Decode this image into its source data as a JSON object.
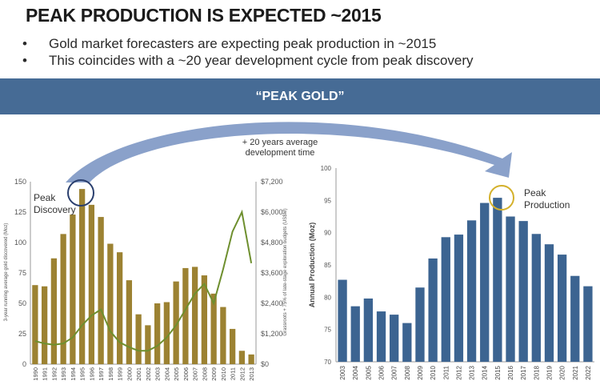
{
  "slide": {
    "title": "PEAK PRODUCTION IS EXPECTED ~2015",
    "bullets": [
      "Gold market forecasters are expecting peak production in ~2015",
      "This coincides with a ~20 year development cycle from peak discovery"
    ],
    "banner": "“PEAK GOLD”",
    "arrow_label_1": "+ 20 years average",
    "arrow_label_2": "development time",
    "colors": {
      "banner": "#466b95",
      "gold_bar": "#9c8232",
      "line": "#6e8f2e",
      "blue_bar": "#3c6491",
      "arrow": "#7d97c4"
    }
  },
  "chart_data": [
    {
      "type": "bar",
      "title": "",
      "annotation": [
        "Peak",
        "Discovery"
      ],
      "categories": [
        "1990",
        "1991",
        "1992",
        "1993",
        "1994",
        "1995",
        "1996",
        "1997",
        "1998",
        "1999",
        "2000",
        "2001",
        "2002",
        "2003",
        "2004",
        "2005",
        "2006",
        "2007",
        "2008",
        "2009",
        "2010",
        "2011",
        "2012",
        "2013"
      ],
      "series": [
        {
          "name": "3-year running average gold discovered (Moz)",
          "axis": "left",
          "type": "bar",
          "values": [
            65,
            64,
            87,
            107,
            123,
            144,
            131,
            121,
            99,
            92,
            69,
            41,
            32,
            50,
            51,
            68,
            79,
            80,
            73,
            58,
            47,
            29,
            11,
            8
          ]
        },
        {
          "name": "Grassroots + 75% of late-stage exploration budgets (US$M)",
          "axis": "right",
          "type": "line",
          "values": [
            912,
            816,
            768,
            816,
            1056,
            1536,
            1920,
            2160,
            1296,
            864,
            672,
            528,
            528,
            720,
            1056,
            1536,
            2160,
            2784,
            3168,
            2400,
            3744,
            5232,
            6000,
            3984
          ]
        }
      ],
      "ylabel": "3-year running average gold discovered (Moz)",
      "ylabel_right": "Grassroots + 75% of late-stage exploration budgets (US$M)",
      "ylim": [
        0,
        150
      ],
      "yticks": [
        "0",
        "25",
        "50",
        "75",
        "100",
        "125",
        "150"
      ],
      "ylim_right": [
        0,
        7200
      ],
      "yticks_right": [
        "$0",
        "$1,200",
        "$2,400",
        "$3,600",
        "$4,800",
        "$6,000",
        "$7,200"
      ]
    },
    {
      "type": "bar",
      "title": "",
      "annotation": [
        "Peak",
        "Production"
      ],
      "categories": [
        "2003",
        "2004",
        "2005",
        "2006",
        "2007",
        "2008",
        "2009",
        "2010",
        "2011",
        "2012",
        "2013",
        "2014",
        "2015",
        "2016",
        "2017",
        "2018",
        "2019",
        "2020",
        "2021",
        "2022"
      ],
      "values": [
        82.7,
        78.6,
        79.8,
        77.8,
        77.3,
        76.0,
        81.5,
        86.0,
        89.3,
        89.7,
        91.9,
        94.6,
        95.4,
        92.5,
        91.8,
        89.8,
        88.2,
        86.6,
        83.3,
        81.7
      ],
      "ylabel": "Annual Production (Moz)",
      "ylim": [
        70,
        100
      ],
      "yticks": [
        "70",
        "75",
        "80",
        "85",
        "90",
        "95",
        "100"
      ]
    }
  ]
}
